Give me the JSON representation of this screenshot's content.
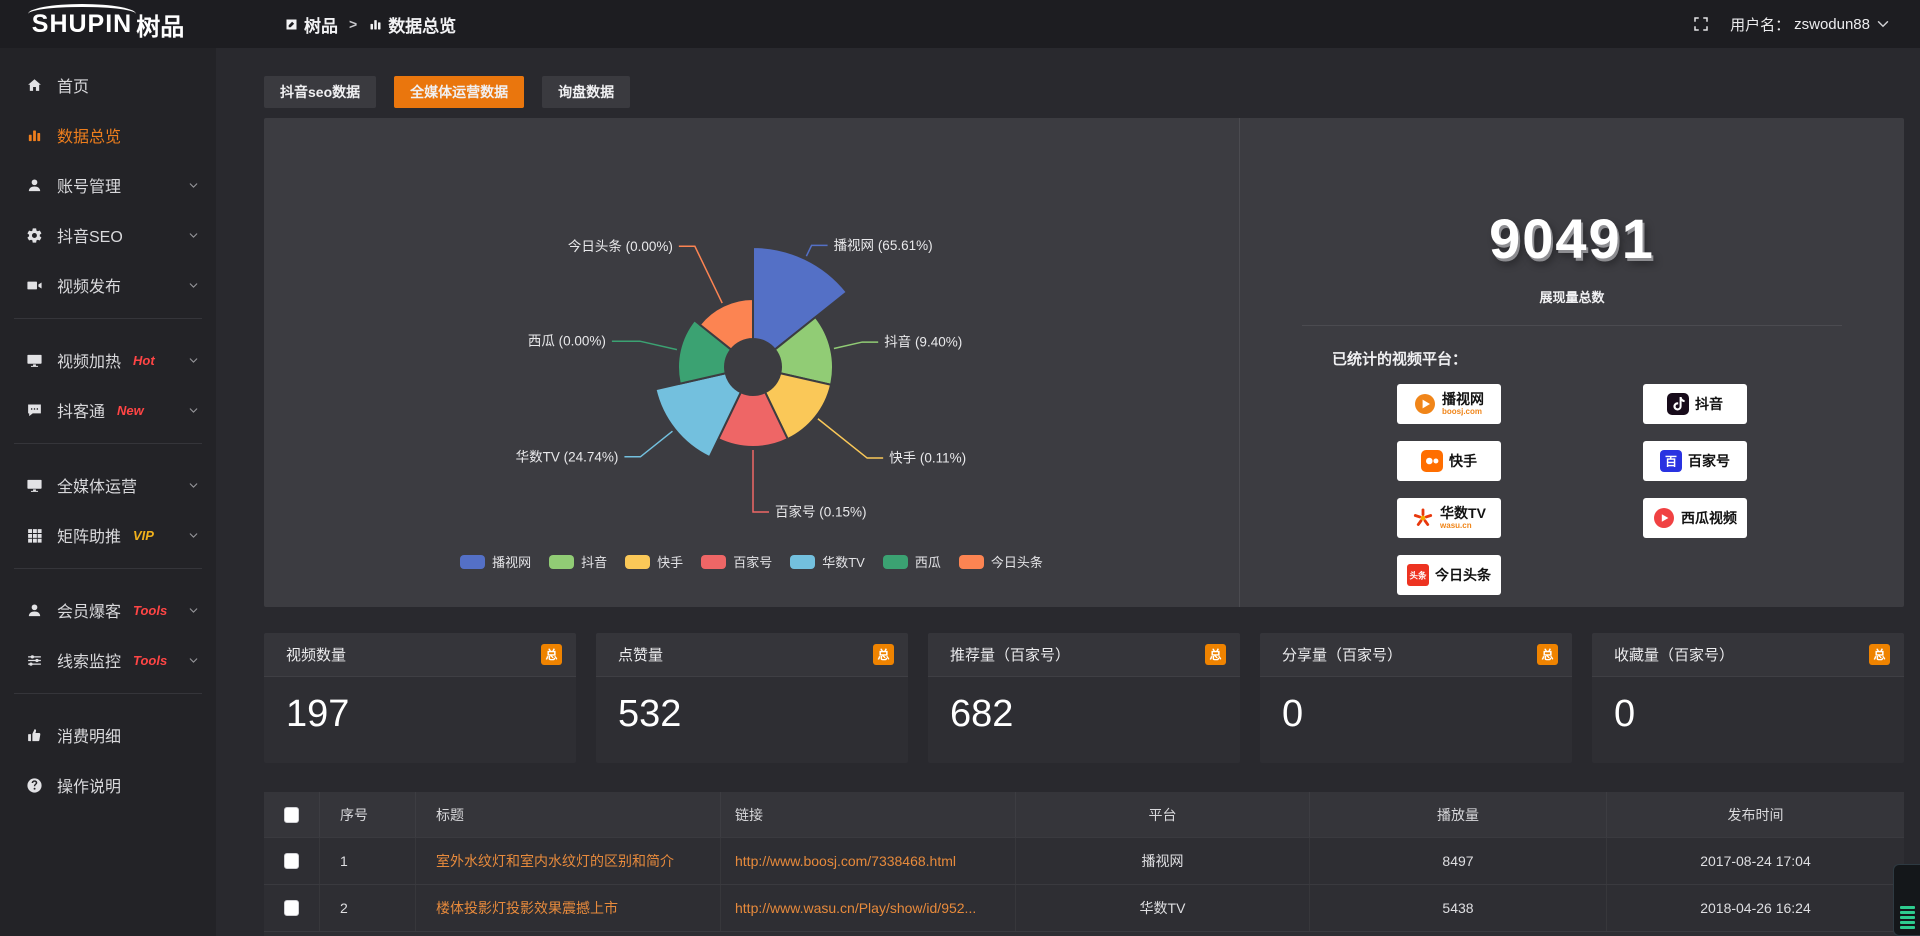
{
  "topbar": {
    "logo_text": "SHUPIN",
    "logo_suffix": "树品",
    "breadcrumb": [
      {
        "icon": "doc-icon",
        "label": "树品"
      },
      {
        "icon": "bar-chart-icon",
        "label": "数据总览"
      }
    ],
    "breadcrumb_separator": ">",
    "username_prefix": "用户名：",
    "username": "zswodun88"
  },
  "sidebar": {
    "items": [
      {
        "label": "首页",
        "icon": "home-icon"
      },
      {
        "label": "数据总览",
        "icon": "bar-chart-icon",
        "active": true
      },
      {
        "label": "账号管理",
        "icon": "user-icon",
        "expandable": true
      },
      {
        "label": "抖音SEO",
        "icon": "gear-icon",
        "expandable": true
      },
      {
        "label": "视频发布",
        "icon": "video-icon",
        "expandable": true,
        "divider_after": true
      },
      {
        "label": "视频加热",
        "icon": "monitor-icon",
        "badge": "Hot",
        "badge_style": "hot",
        "expandable": true
      },
      {
        "label": "抖客通",
        "icon": "chat-icon",
        "badge": "New",
        "badge_style": "hot",
        "expandable": true,
        "divider_after": true
      },
      {
        "label": "全媒体运营",
        "icon": "display-icon",
        "expandable": true
      },
      {
        "label": "矩阵助推",
        "icon": "grid-icon",
        "badge": "VIP",
        "badge_style": "vip",
        "expandable": true,
        "divider_after": true
      },
      {
        "label": "会员爆客",
        "icon": "member-icon",
        "badge": "Tools",
        "badge_style": "hot",
        "expandable": true
      },
      {
        "label": "线索监控",
        "icon": "sliders-icon",
        "badge": "Tools",
        "badge_style": "hot",
        "expandable": true,
        "divider_after": true
      },
      {
        "label": "消费明细",
        "icon": "wallet-icon"
      },
      {
        "label": "操作说明",
        "icon": "question-icon"
      }
    ]
  },
  "tabs": [
    {
      "label": "抖音seo数据",
      "active": false
    },
    {
      "label": "全媒体运营数据",
      "active": true
    },
    {
      "label": "询盘数据",
      "active": false
    }
  ],
  "chart_data": {
    "type": "pie",
    "variant": "nightingale-rose",
    "unit": "percent",
    "legend_position": "bottom",
    "platforms": [
      {
        "name": "播视网",
        "percent": 65.61,
        "color": "#5470c6",
        "radius_hint": 120
      },
      {
        "name": "抖音",
        "percent": 9.4,
        "color": "#91cc75",
        "radius_hint": 80
      },
      {
        "name": "快手",
        "percent": 0.11,
        "color": "#fac858",
        "radius_hint": 80
      },
      {
        "name": "百家号",
        "percent": 0.15,
        "color": "#ee6666",
        "radius_hint": 80
      },
      {
        "name": "华数TV",
        "percent": 24.74,
        "color": "#73c0de",
        "radius_hint": 100
      },
      {
        "name": "西瓜",
        "percent": 0.0,
        "color": "#3ba272",
        "radius_hint": 75
      },
      {
        "name": "今日头条",
        "percent": 0.0,
        "color": "#fc8452",
        "radius_hint": 68
      }
    ]
  },
  "summary": {
    "total": "90491",
    "total_label": "展现量总数",
    "platforms_title": "已统计的视频平台：",
    "platform_badges_left": [
      {
        "label": "播视网",
        "sub": "boosj.com",
        "icon": "boosj-logo"
      },
      {
        "label": "快手",
        "icon": "kuaishou-logo"
      },
      {
        "label": "华数TV",
        "sub": "wasu.cn",
        "icon": "wasu-logo"
      },
      {
        "label": "今日头条",
        "icon": "toutiao-logo"
      }
    ],
    "platform_badges_right": [
      {
        "label": "抖音",
        "icon": "douyin-logo"
      },
      {
        "label": "百家号",
        "icon": "baijiahao-logo"
      },
      {
        "label": "西瓜视频",
        "icon": "xigua-logo"
      }
    ]
  },
  "stat_cards": [
    {
      "title": "视频数量",
      "badge": "总",
      "value": "197"
    },
    {
      "title": "点赞量",
      "badge": "总",
      "value": "532"
    },
    {
      "title": "推荐量（百家号）",
      "badge": "总",
      "value": "682"
    },
    {
      "title": "分享量（百家号）",
      "badge": "总",
      "value": "0"
    },
    {
      "title": "收藏量（百家号）",
      "badge": "总",
      "value": "0"
    }
  ],
  "table": {
    "columns": [
      "",
      "序号",
      "标题",
      "链接",
      "平台",
      "播放量",
      "发布时间"
    ],
    "rows": [
      {
        "index": "1",
        "title": "室外水纹灯和室内水纹灯的区别和简介",
        "link": "http://www.boosj.com/7338468.html",
        "platform": "播视网",
        "plays": "8497",
        "published": "2017-08-24 17:04"
      },
      {
        "index": "2",
        "title": "楼体投影灯投影效果震撼上市",
        "link": "http://www.wasu.cn/Play/show/id/952...",
        "platform": "华数TV",
        "plays": "5438",
        "published": "2018-04-26 16:24"
      }
    ]
  },
  "colors": {
    "accent": "#ea760d",
    "badge": "#ef8300",
    "link": "#e78a3c",
    "hot": "#ff4545",
    "vip": "#f0b11c",
    "panel": "#3c3c41"
  }
}
